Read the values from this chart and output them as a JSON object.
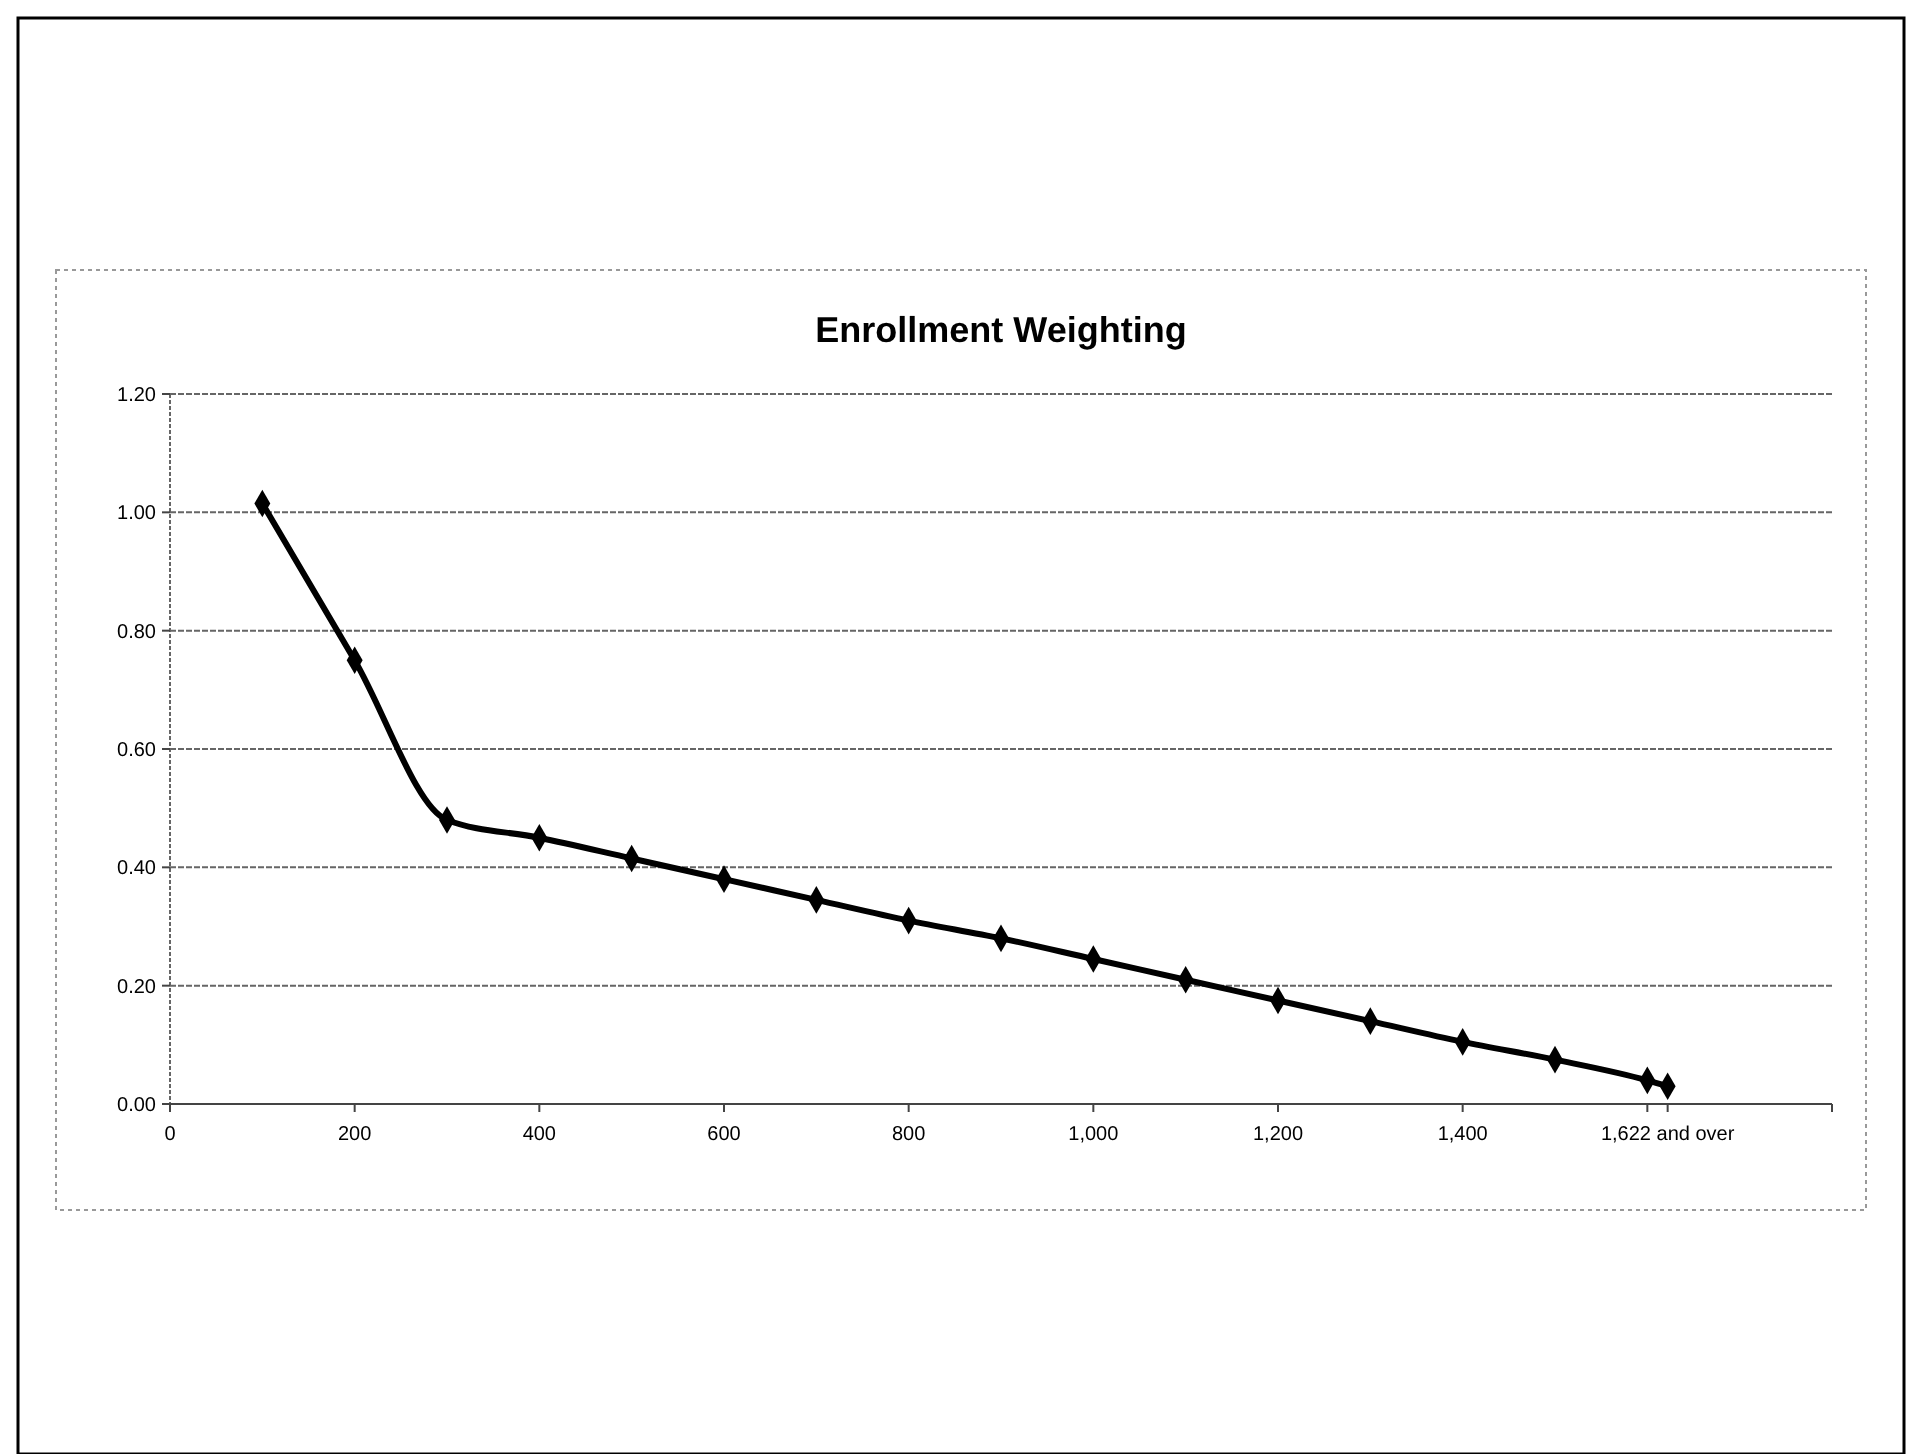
{
  "chart_data": {
    "type": "line",
    "title": "Enrollment Weighting",
    "x": [
      100,
      200,
      300,
      400,
      500,
      600,
      700,
      800,
      900,
      1000,
      1100,
      1200,
      1300,
      1400,
      1500,
      1600,
      1622
    ],
    "series": [
      {
        "color": "#000000",
        "values": [
          1.015,
          0.75,
          0.48,
          0.45,
          0.415,
          0.38,
          0.345,
          0.31,
          0.28,
          0.245,
          0.21,
          0.175,
          0.14,
          0.105,
          0.075,
          0.04,
          0.03
        ]
      }
    ],
    "xlim": [
      0,
      1800
    ],
    "xticks": [
      0,
      {
        "value": 200,
        "label": "200"
      },
      {
        "value": 400,
        "label": "400"
      },
      {
        "value": 600,
        "label": "600"
      },
      {
        "value": 800,
        "label": "800"
      },
      {
        "value": 1000,
        "label": "1,000"
      },
      {
        "value": 1200,
        "label": "1,200"
      },
      {
        "value": 1400,
        "label": "1,400"
      },
      {
        "value": 1600,
        "label": null
      },
      {
        "value": 1622,
        "label": "1,622 and over"
      },
      {
        "value": 1800,
        "label": null
      }
    ],
    "ylim": [
      0,
      1.2
    ],
    "yticks": [
      {
        "value": 0,
        "label": "0.00"
      },
      {
        "value": 0.2,
        "label": "0.20"
      },
      {
        "value": 0.4,
        "label": "0.40"
      },
      {
        "value": 0.6,
        "label": "0.60"
      },
      {
        "value": 0.8,
        "label": "0.80"
      },
      {
        "value": 1,
        "label": "1.00"
      },
      {
        "value": 1.2,
        "label": "1.20"
      }
    ],
    "grid": "y",
    "marker": "diamond",
    "line_style": "solid"
  }
}
